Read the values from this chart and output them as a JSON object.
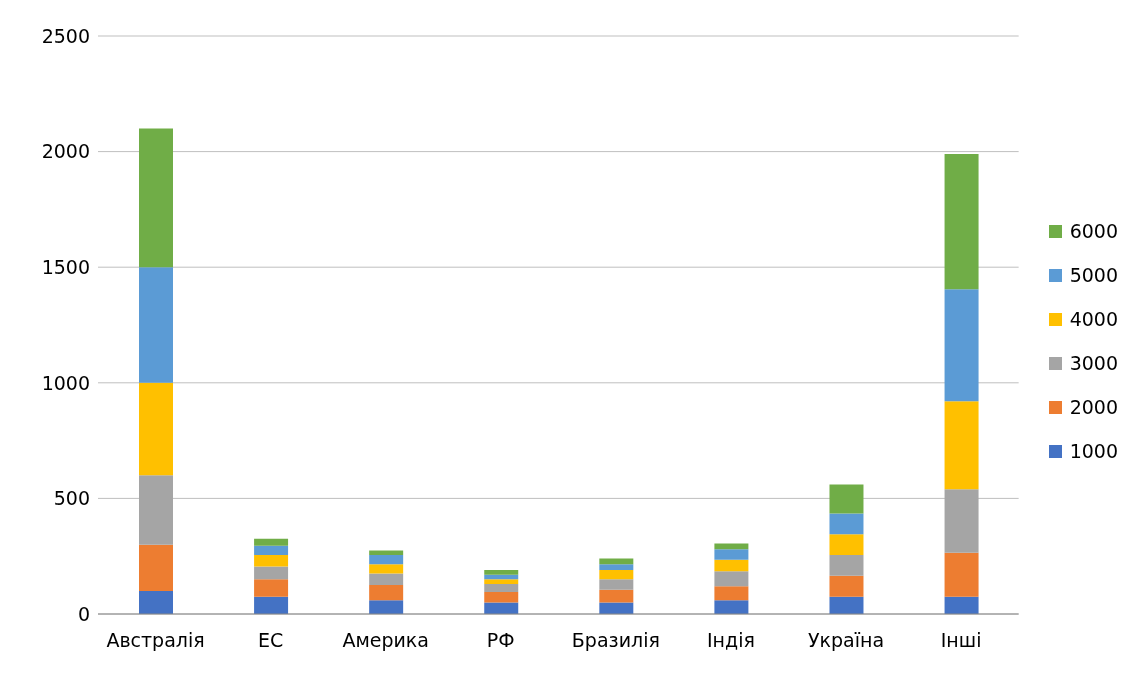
{
  "chart_data": {
    "type": "bar",
    "stacked": true,
    "categories": [
      "Австралія",
      "ЕС",
      "Америка",
      "РФ",
      "Бразилія",
      "Індія",
      "Україна",
      "Інші"
    ],
    "series": [
      {
        "name": "1000",
        "color": "#4472c4",
        "values": [
          100,
          75,
          60,
          50,
          50,
          60,
          75,
          75
        ]
      },
      {
        "name": "2000",
        "color": "#ed7d31",
        "values": [
          200,
          75,
          65,
          45,
          55,
          60,
          90,
          190
        ]
      },
      {
        "name": "3000",
        "color": "#a5a5a5",
        "values": [
          300,
          55,
          50,
          35,
          45,
          65,
          90,
          275
        ]
      },
      {
        "name": "4000",
        "color": "#ffc000",
        "values": [
          400,
          50,
          40,
          20,
          40,
          50,
          90,
          380
        ]
      },
      {
        "name": "5000",
        "color": "#5b9bd5",
        "values": [
          500,
          40,
          40,
          20,
          25,
          45,
          90,
          485
        ]
      },
      {
        "name": "6000",
        "color": "#70ad47",
        "values": [
          600,
          30,
          20,
          20,
          25,
          25,
          125,
          585
        ]
      }
    ],
    "ylim": [
      0,
      2500
    ],
    "yticks": [
      0,
      500,
      1000,
      1500,
      2000,
      2500
    ],
    "grid": "y",
    "legend": "right"
  }
}
